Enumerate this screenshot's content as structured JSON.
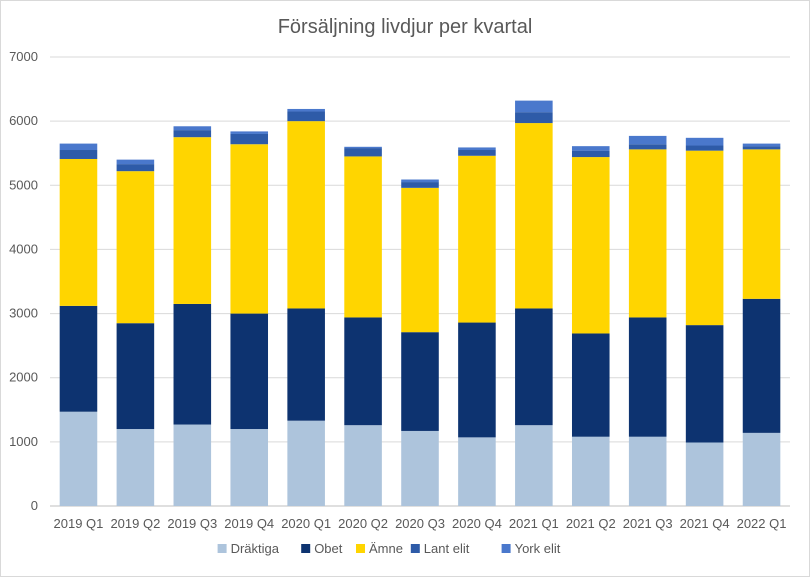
{
  "chart_data": {
    "type": "bar",
    "stacked": true,
    "title": "Försäljning livdjur per kvartal",
    "xlabel": "",
    "ylabel": "",
    "ylim": [
      0,
      7000
    ],
    "yticks": [
      0,
      1000,
      2000,
      3000,
      4000,
      5000,
      6000,
      7000
    ],
    "grid": true,
    "legend_position": "bottom",
    "categories": [
      "2019 Q1",
      "2019 Q2",
      "2019 Q3",
      "2019 Q4",
      "2020 Q1",
      "2020 Q2",
      "2020 Q3",
      "2020 Q4",
      "2021 Q1",
      "2021 Q2",
      "2021 Q3",
      "2021 Q4",
      "2022 Q1"
    ],
    "series": [
      {
        "name": "Dräktiga",
        "color": "#adc4dc",
        "values": [
          1470,
          1200,
          1270,
          1200,
          1330,
          1260,
          1170,
          1070,
          1260,
          1080,
          1080,
          990,
          1140
        ]
      },
      {
        "name": "Obet",
        "color": "#0d3370",
        "values": [
          1650,
          1650,
          1880,
          1800,
          1750,
          1680,
          1540,
          1790,
          1820,
          1610,
          1860,
          1830,
          2090
        ]
      },
      {
        "name": "Ämne",
        "color": "#ffd500",
        "values": [
          2290,
          2370,
          2600,
          2640,
          2920,
          2510,
          2250,
          2600,
          2890,
          2750,
          2620,
          2720,
          2330
        ]
      },
      {
        "name": "Lant elit",
        "color": "#2e5ba8",
        "values": [
          140,
          110,
          110,
          160,
          150,
          130,
          90,
          90,
          170,
          100,
          80,
          80,
          50
        ]
      },
      {
        "name": "York elit",
        "color": "#4a78cc",
        "values": [
          100,
          70,
          60,
          40,
          40,
          20,
          40,
          40,
          180,
          70,
          130,
          120,
          40
        ]
      }
    ]
  }
}
